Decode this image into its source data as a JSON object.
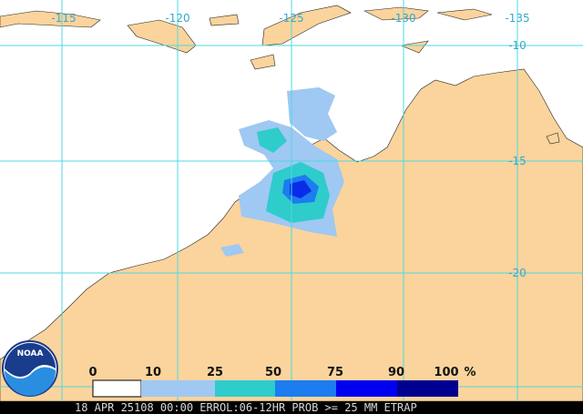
{
  "map": {
    "longitude_labels": [
      "-115",
      "-120",
      "-125",
      "-130",
      "-135"
    ],
    "latitude_labels": [
      "-10",
      "-15",
      "-20"
    ]
  },
  "legend": {
    "labels": [
      "0",
      "10",
      "25",
      "50",
      "75",
      "90",
      "100"
    ],
    "unit": "%"
  },
  "logo": "NOAA",
  "footer": "18 APR 25108 00:00 ERROL:06-12HR PROB >= 25 MM ETRAP"
}
